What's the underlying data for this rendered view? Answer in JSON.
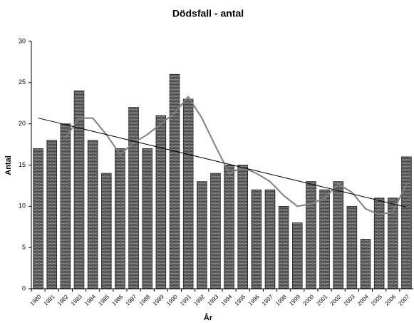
{
  "chart_data": {
    "type": "bar",
    "title": "Dödsfall - antal",
    "x_label": "År",
    "y_label": "Antal",
    "categories": [
      "1980",
      "1981",
      "1982",
      "1983",
      "1984",
      "1985",
      "1986",
      "1987",
      "1988",
      "1989",
      "1990",
      "1991",
      "1992",
      "1993",
      "1994",
      "1995",
      "1996",
      "1997",
      "1998",
      "1999",
      "2000",
      "2001",
      "2002",
      "2003",
      "2004",
      "2005",
      "2006",
      "2007"
    ],
    "values": [
      17,
      18,
      20,
      24,
      18,
      14,
      17,
      22,
      17,
      21,
      26,
      23,
      13,
      14,
      15,
      15,
      12,
      12,
      10,
      8,
      13,
      12,
      13,
      10,
      6,
      11,
      11,
      16
    ],
    "color": "#8c8c8c",
    "lines": [
      {
        "color": "#808080",
        "values": [
          null,
          null,
          18.3,
          20.7,
          20.7,
          18.7,
          16.3,
          17.7,
          18.7,
          20,
          21.3,
          23.3,
          20.7,
          17.3,
          14,
          14.7,
          14,
          13,
          11.3,
          10,
          10.3,
          11,
          12.7,
          11.7,
          9.7,
          9,
          9.3,
          12.7
        ]
      },
      {
        "color": "#000000",
        "values": [
          20.7,
          20.3,
          19.9,
          19.5,
          19.1,
          18.7,
          18.3,
          17.9,
          17.5,
          17.1,
          16.7,
          16.3,
          15.9,
          15.5,
          15.1,
          14.7,
          14.3,
          13.9,
          13.5,
          13.1,
          12.7,
          12.3,
          11.9,
          11.5,
          11.1,
          10.7,
          10.3,
          9.9
        ]
      }
    ],
    "ylim": [
      0,
      30
    ],
    "yticks": [
      0,
      5,
      10,
      15,
      20,
      25,
      30
    ],
    "grid": false
  }
}
